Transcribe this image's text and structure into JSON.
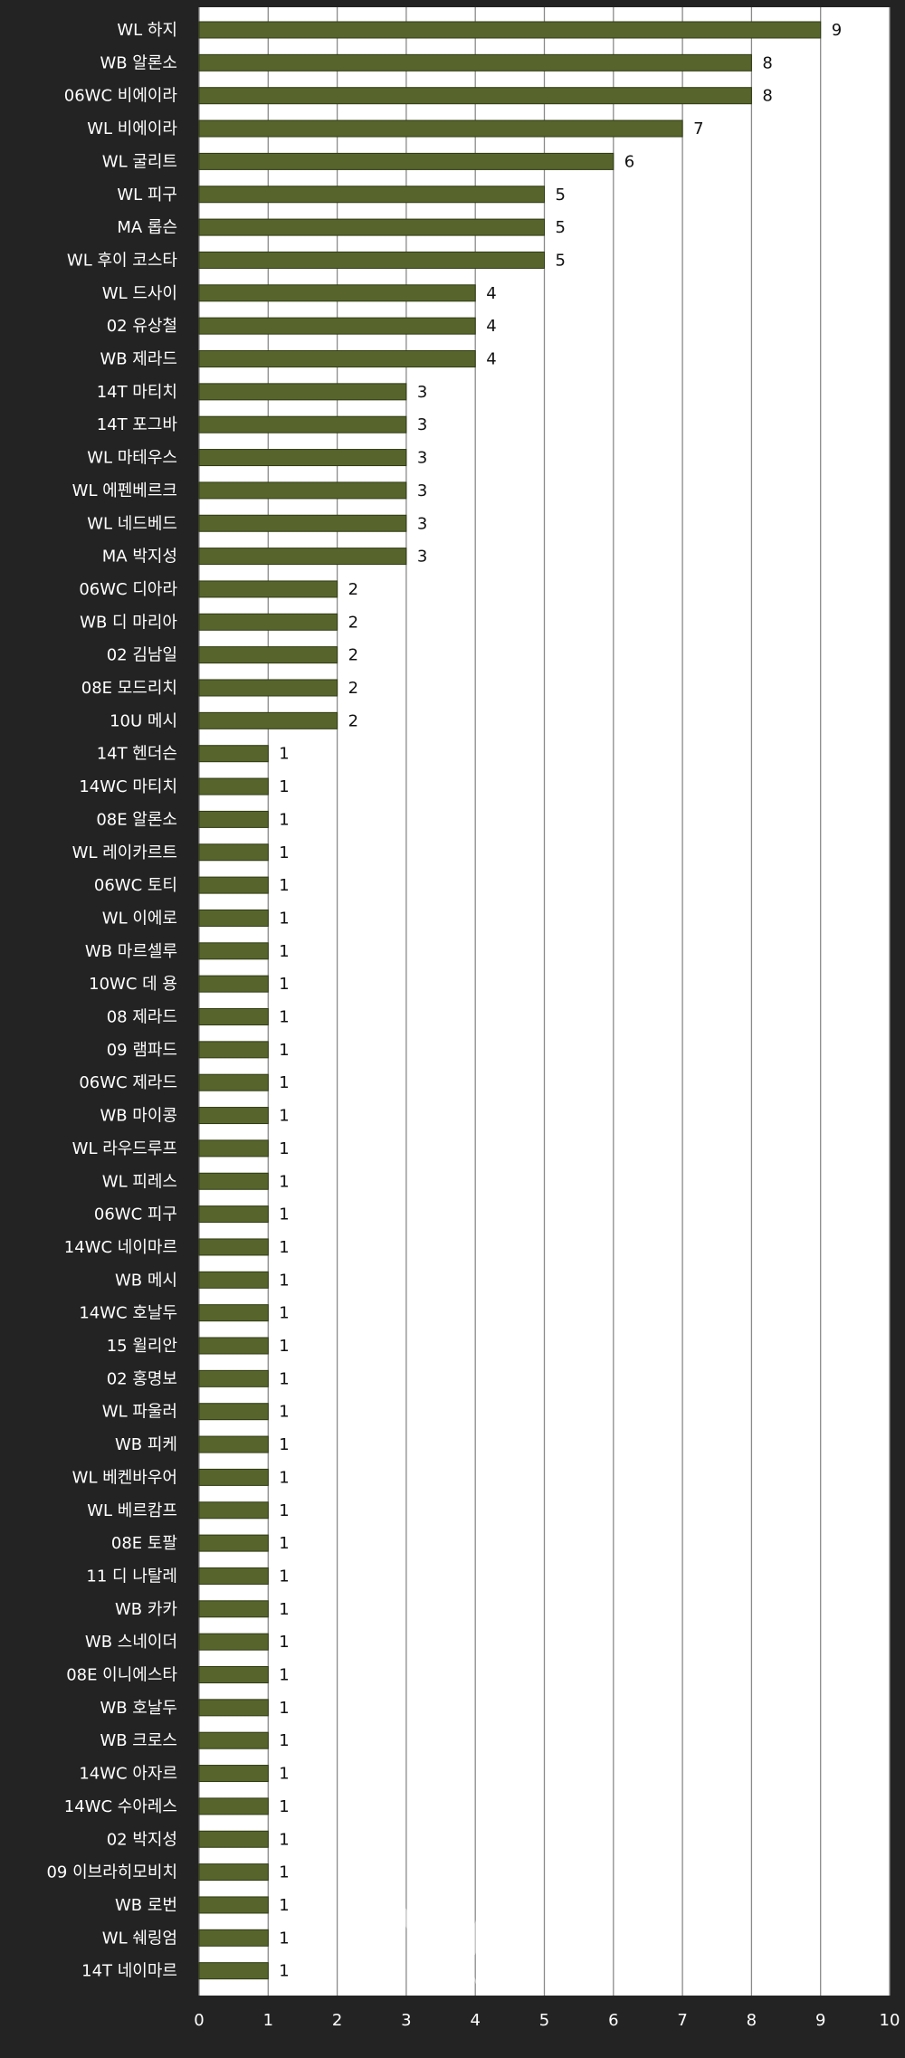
{
  "chart_data": {
    "type": "bar",
    "orientation": "horizontal",
    "title": "",
    "xlabel": "",
    "ylabel": "",
    "xlim": [
      0,
      10
    ],
    "x_ticks": [
      0,
      1,
      2,
      3,
      4,
      5,
      6,
      7,
      8,
      9,
      10
    ],
    "grid": true,
    "bar_color": "#57652c",
    "plot_background": "#ffffff",
    "page_background": "#232323",
    "categories": [
      "WL 하지",
      "WB 알론소",
      "06WC 비에이라",
      "WL 비에이라",
      "WL 굴리트",
      "WL 피구",
      "MA 롭슨",
      "WL 후이 코스타",
      "WL 드사이",
      "02 유상철",
      "WB 제라드",
      "14T 마티치",
      "14T 포그바",
      "WL 마테우스",
      "WL 에펜베르크",
      "WL 네드베드",
      "MA 박지성",
      "06WC 디아라",
      "WB 디 마리아",
      "02 김남일",
      "08E 모드리치",
      "10U 메시",
      "14T 헨더슨",
      "14WC 마티치",
      "08E 알론소",
      "WL 레이카르트",
      "06WC 토티",
      "WL 이에로",
      "WB 마르셀루",
      "10WC 데 용",
      "08 제라드",
      "09 램파드",
      "06WC 제라드",
      "WB 마이콩",
      "WL 라우드루프",
      "WL 피레스",
      "06WC 피구",
      "14WC 네이마르",
      "WB 메시",
      "14WC 호날두",
      "15 윌리안",
      "02 홍명보",
      "WL 파울러",
      "WB 피케",
      "WL 베켄바우어",
      "WL 베르캄프",
      "08E 토팔",
      "11 디 나탈레",
      "WB 카카",
      "WB 스네이더",
      "08E 이니에스타",
      "WB 호날두",
      "WB 크로스",
      "14WC 아자르",
      "14WC 수아레스",
      "02 박지성",
      "09 이브라히모비치",
      "WB 로번",
      "WL 쉐링엄",
      "14T 네이마르"
    ],
    "values": [
      9,
      8,
      8,
      7,
      6,
      5,
      5,
      5,
      4,
      4,
      4,
      3,
      3,
      3,
      3,
      3,
      3,
      2,
      2,
      2,
      2,
      2,
      1,
      1,
      1,
      1,
      1,
      1,
      1,
      1,
      1,
      1,
      1,
      1,
      1,
      1,
      1,
      1,
      1,
      1,
      1,
      1,
      1,
      1,
      1,
      1,
      1,
      1,
      1,
      1,
      1,
      1,
      1,
      1,
      1,
      1,
      1,
      1,
      1,
      1
    ],
    "data_labels": true
  },
  "watermark": {
    "text": "INVEN",
    "subtext": "www.inven.co.kr"
  }
}
